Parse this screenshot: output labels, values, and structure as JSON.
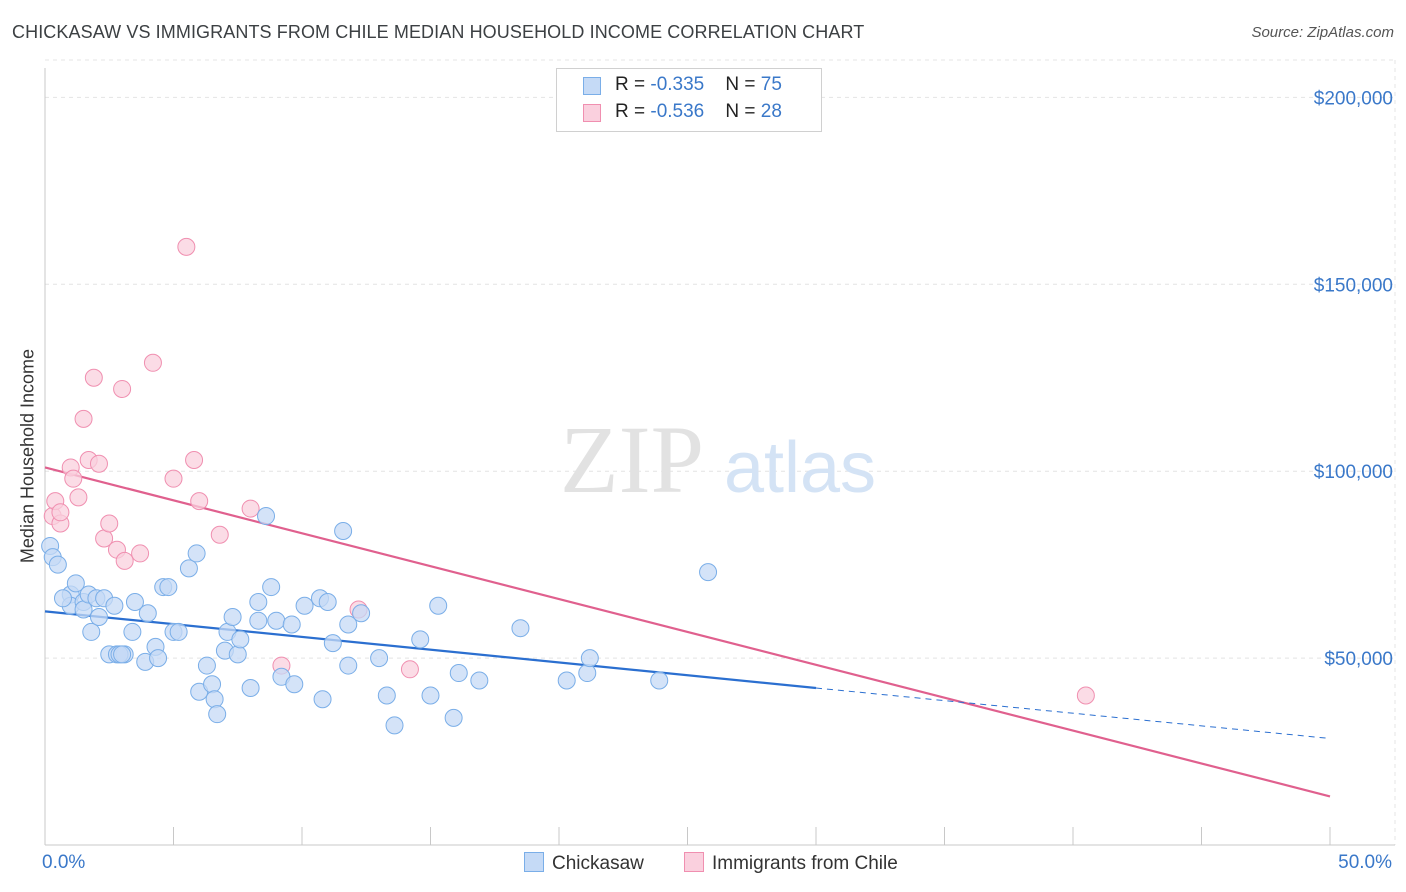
{
  "title": "CHICKASAW VS IMMIGRANTS FROM CHILE MEDIAN HOUSEHOLD INCOME CORRELATION CHART",
  "source": "Source: ZipAtlas.com",
  "watermark": {
    "zip": "ZIP",
    "atlas": "atlas"
  },
  "legend": {
    "r_label": "R = ",
    "n_label": "N = ",
    "series": [
      {
        "name": "Chickasaw",
        "r": "-0.335",
        "n": "75",
        "color": "#7aaee8",
        "fill": "#c5daf6",
        "line": "#2b6fd0"
      },
      {
        "name": "Immigrants from Chile",
        "r": "-0.536",
        "n": "28",
        "color": "#f08fb0",
        "fill": "#fad0de",
        "line": "#e0608e"
      }
    ]
  },
  "chart_data": {
    "type": "scatter",
    "title": "CHICKASAW VS IMMIGRANTS FROM CHILE MEDIAN HOUSEHOLD INCOME CORRELATION CHART",
    "xlabel": "",
    "ylabel": "Median Household Income",
    "xlim": [
      0,
      50
    ],
    "ylim": [
      0,
      210000
    ],
    "x_tick_labels": [
      "0.0%",
      "50.0%"
    ],
    "y_ticks": [
      50000,
      100000,
      150000,
      200000
    ],
    "y_tick_labels": [
      "$50,000",
      "$100,000",
      "$150,000",
      "$200,000"
    ],
    "grid": true,
    "series": [
      {
        "name": "Chickasaw",
        "points": [
          [
            0.2,
            80000
          ],
          [
            0.3,
            77000
          ],
          [
            0.5,
            75000
          ],
          [
            1.0,
            67000
          ],
          [
            1.0,
            64000
          ],
          [
            1.2,
            70000
          ],
          [
            1.5,
            65000
          ],
          [
            1.5,
            63000
          ],
          [
            1.7,
            67000
          ],
          [
            1.8,
            57000
          ],
          [
            2.0,
            66000
          ],
          [
            2.1,
            61000
          ],
          [
            2.3,
            66000
          ],
          [
            2.5,
            51000
          ],
          [
            2.7,
            64000
          ],
          [
            2.8,
            51000
          ],
          [
            3.1,
            51000
          ],
          [
            3.4,
            57000
          ],
          [
            3.5,
            65000
          ],
          [
            3.9,
            49000
          ],
          [
            4.0,
            62000
          ],
          [
            4.3,
            53000
          ],
          [
            4.4,
            50000
          ],
          [
            4.6,
            69000
          ],
          [
            4.8,
            69000
          ],
          [
            5.0,
            57000
          ],
          [
            5.2,
            57000
          ],
          [
            5.6,
            74000
          ],
          [
            5.9,
            78000
          ],
          [
            6.0,
            41000
          ],
          [
            6.3,
            48000
          ],
          [
            6.5,
            43000
          ],
          [
            6.6,
            39000
          ],
          [
            6.7,
            35000
          ],
          [
            7.0,
            52000
          ],
          [
            7.1,
            57000
          ],
          [
            7.3,
            61000
          ],
          [
            7.5,
            51000
          ],
          [
            7.6,
            55000
          ],
          [
            8.0,
            42000
          ],
          [
            8.3,
            65000
          ],
          [
            8.3,
            60000
          ],
          [
            8.6,
            88000
          ],
          [
            8.8,
            69000
          ],
          [
            9.0,
            60000
          ],
          [
            9.2,
            45000
          ],
          [
            9.6,
            59000
          ],
          [
            9.7,
            43000
          ],
          [
            10.1,
            64000
          ],
          [
            10.7,
            66000
          ],
          [
            10.8,
            39000
          ],
          [
            11.0,
            65000
          ],
          [
            11.2,
            54000
          ],
          [
            11.6,
            84000
          ],
          [
            11.8,
            48000
          ],
          [
            11.8,
            59000
          ],
          [
            12.3,
            62000
          ],
          [
            13.0,
            50000
          ],
          [
            13.3,
            40000
          ],
          [
            13.6,
            32000
          ],
          [
            14.6,
            55000
          ],
          [
            15.0,
            40000
          ],
          [
            15.3,
            64000
          ],
          [
            15.9,
            34000
          ],
          [
            16.1,
            46000
          ],
          [
            16.9,
            44000
          ],
          [
            18.5,
            58000
          ],
          [
            20.3,
            44000
          ],
          [
            21.1,
            46000
          ],
          [
            21.2,
            50000
          ],
          [
            23.9,
            44000
          ],
          [
            25.8,
            73000
          ],
          [
            0.7,
            66000
          ],
          [
            2.9,
            51000
          ],
          [
            3.0,
            51000
          ]
        ],
        "trend": {
          "x": [
            0,
            30
          ],
          "y": [
            62500,
            42000
          ],
          "dashed_extension": {
            "x": [
              30,
              50
            ],
            "y": [
              42000,
              28500
            ]
          }
        }
      },
      {
        "name": "Immigrants from Chile",
        "points": [
          [
            0.3,
            88000
          ],
          [
            0.4,
            92000
          ],
          [
            0.6,
            86000
          ],
          [
            0.6,
            89000
          ],
          [
            1.0,
            101000
          ],
          [
            1.1,
            98000
          ],
          [
            1.3,
            93000
          ],
          [
            1.5,
            114000
          ],
          [
            1.7,
            103000
          ],
          [
            1.9,
            125000
          ],
          [
            2.1,
            102000
          ],
          [
            2.3,
            82000
          ],
          [
            2.5,
            86000
          ],
          [
            2.8,
            79000
          ],
          [
            3.0,
            122000
          ],
          [
            3.1,
            76000
          ],
          [
            3.7,
            78000
          ],
          [
            4.2,
            129000
          ],
          [
            5.0,
            98000
          ],
          [
            5.5,
            160000
          ],
          [
            5.8,
            103000
          ],
          [
            6.0,
            92000
          ],
          [
            6.8,
            83000
          ],
          [
            8.0,
            90000
          ],
          [
            9.2,
            48000
          ],
          [
            12.2,
            63000
          ],
          [
            14.2,
            47000
          ],
          [
            40.5,
            40000
          ]
        ],
        "trend": {
          "x": [
            0,
            50
          ],
          "y": [
            101000,
            13000
          ]
        }
      }
    ]
  }
}
